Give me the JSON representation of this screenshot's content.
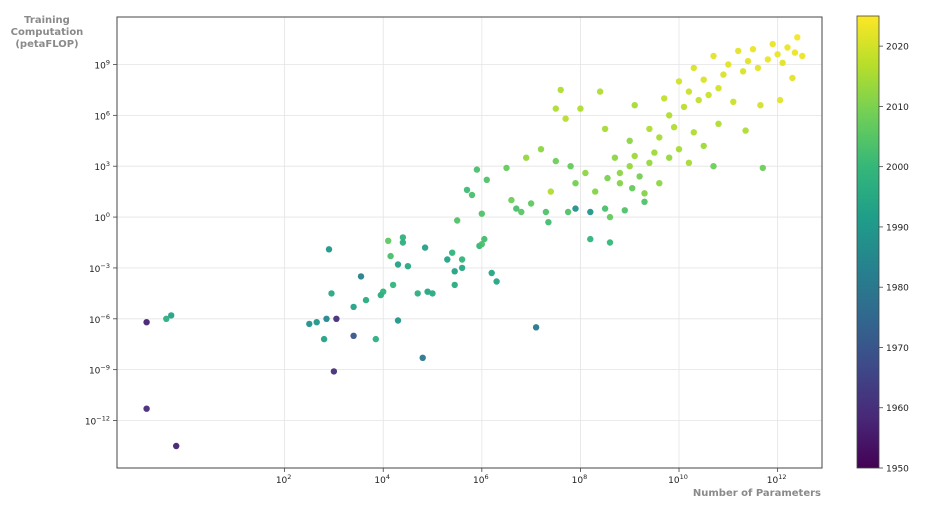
{
  "chart_data": {
    "type": "scatter",
    "title": "",
    "xlabel": "Number of Parameters",
    "ylabel_lines": [
      "Training",
      "Computation",
      "(petaFLOP)"
    ],
    "x_scale": "log",
    "y_scale": "log",
    "xlim_exp": [
      -1.4,
      12.9
    ],
    "ylim_exp": [
      -14.8,
      11.8
    ],
    "x_ticks": [
      {
        "base": "10",
        "exp": "2",
        "value_exp": 2
      },
      {
        "base": "10",
        "exp": "4",
        "value_exp": 4
      },
      {
        "base": "10",
        "exp": "6",
        "value_exp": 6
      },
      {
        "base": "10",
        "exp": "8",
        "value_exp": 8
      },
      {
        "base": "10",
        "exp": "10",
        "value_exp": 10
      },
      {
        "base": "10",
        "exp": "12",
        "value_exp": 12
      }
    ],
    "y_ticks": [
      {
        "base": "10",
        "exp": "−12",
        "value_exp": -12
      },
      {
        "base": "10",
        "exp": "−9",
        "value_exp": -9
      },
      {
        "base": "10",
        "exp": "−6",
        "value_exp": -6
      },
      {
        "base": "10",
        "exp": "−3",
        "value_exp": -3
      },
      {
        "base": "10",
        "exp": "0",
        "value_exp": 0
      },
      {
        "base": "10",
        "exp": "3",
        "value_exp": 3
      },
      {
        "base": "10",
        "exp": "6",
        "value_exp": 6
      },
      {
        "base": "10",
        "exp": "9",
        "value_exp": 9
      }
    ],
    "grid": true,
    "colorbar": {
      "label": "",
      "min": 1950,
      "max": 2025,
      "ticks": [
        "1950",
        "1960",
        "1970",
        "1980",
        "1990",
        "2000",
        "2010",
        "2020"
      ],
      "tick_values": [
        1950,
        1960,
        1970,
        1980,
        1990,
        2000,
        2010,
        2020
      ],
      "colormap": [
        "#440154",
        "#482878",
        "#3e4989",
        "#31688e",
        "#26828e",
        "#1f9e89",
        "#35b779",
        "#6ece58",
        "#b5de2b",
        "#fde725"
      ]
    },
    "points_note": "Each point: [log10 parameters, log10 training compute (petaFLOP), year]",
    "points": [
      [
        -0.8,
        -6.2,
        1957
      ],
      [
        -0.8,
        -11.3,
        1959
      ],
      [
        -0.2,
        -13.5,
        1957
      ],
      [
        -0.3,
        -5.8,
        1993
      ],
      [
        -0.4,
        -6.0,
        1997
      ],
      [
        2.5,
        -6.3,
        1988
      ],
      [
        2.65,
        -6.2,
        1990
      ],
      [
        2.8,
        -7.2,
        1993
      ],
      [
        2.85,
        -6.0,
        1985
      ],
      [
        2.9,
        -1.9,
        1990
      ],
      [
        2.95,
        -4.5,
        1995
      ],
      [
        3.05,
        -6.0,
        1960
      ],
      [
        3.0,
        -9.1,
        1960
      ],
      [
        3.4,
        -5.3,
        1993
      ],
      [
        3.4,
        -7.0,
        1970
      ],
      [
        3.55,
        -3.5,
        1983
      ],
      [
        3.65,
        -4.9,
        1996
      ],
      [
        3.85,
        -7.2,
        1997
      ],
      [
        3.95,
        -4.6,
        1996
      ],
      [
        4.0,
        -4.4,
        1998
      ],
      [
        4.1,
        -1.4,
        2006
      ],
      [
        4.15,
        -2.3,
        2003
      ],
      [
        4.2,
        -4.0,
        1999
      ],
      [
        4.3,
        -2.8,
        1993
      ],
      [
        4.3,
        -6.1,
        1990
      ],
      [
        4.4,
        -1.5,
        1997
      ],
      [
        4.4,
        -1.2,
        1998
      ],
      [
        4.5,
        -2.9,
        1995
      ],
      [
        4.7,
        -4.5,
        1997
      ],
      [
        4.8,
        -8.3,
        1980
      ],
      [
        4.85,
        -1.8,
        1993
      ],
      [
        4.9,
        -4.4,
        1994
      ],
      [
        5.0,
        -4.5,
        1996
      ],
      [
        5.3,
        -2.5,
        1993
      ],
      [
        5.4,
        -2.1,
        1999
      ],
      [
        5.45,
        -3.2,
        1993
      ],
      [
        5.45,
        -4.0,
        1996
      ],
      [
        5.5,
        -0.2,
        2004
      ],
      [
        5.6,
        -2.5,
        1999
      ],
      [
        5.6,
        -3.0,
        1995
      ],
      [
        5.7,
        1.6,
        2001
      ],
      [
        5.8,
        1.3,
        2003
      ],
      [
        5.9,
        2.8,
        2003
      ],
      [
        5.95,
        -1.7,
        1999
      ],
      [
        6.0,
        0.2,
        2004
      ],
      [
        6.0,
        -1.6,
        2003
      ],
      [
        6.05,
        -1.3,
        2002
      ],
      [
        6.1,
        2.2,
        2004
      ],
      [
        6.2,
        -3.3,
        1994
      ],
      [
        6.3,
        -3.8,
        1994
      ],
      [
        6.5,
        2.9,
        2007
      ],
      [
        6.6,
        1.0,
        2008
      ],
      [
        6.7,
        0.5,
        2003
      ],
      [
        6.8,
        0.3,
        2005
      ],
      [
        7.1,
        -6.5,
        1980
      ],
      [
        6.9,
        3.5,
        2013
      ],
      [
        7.0,
        0.8,
        2006
      ],
      [
        7.2,
        4.0,
        2012
      ],
      [
        7.3,
        0.3,
        2004
      ],
      [
        7.35,
        -0.3,
        2002
      ],
      [
        7.4,
        1.5,
        2016
      ],
      [
        7.5,
        3.3,
        2008
      ],
      [
        7.5,
        6.4,
        2016
      ],
      [
        7.6,
        7.5,
        2016
      ],
      [
        7.7,
        5.8,
        2017
      ],
      [
        7.75,
        0.3,
        2004
      ],
      [
        7.8,
        3.0,
        2007
      ],
      [
        7.9,
        0.5,
        1988
      ],
      [
        7.9,
        2.0,
        2009
      ],
      [
        8.0,
        6.4,
        2016
      ],
      [
        8.1,
        2.6,
        2012
      ],
      [
        8.2,
        0.3,
        1990
      ],
      [
        8.2,
        -1.3,
        1999
      ],
      [
        8.3,
        1.5,
        2011
      ],
      [
        8.4,
        7.4,
        2016
      ],
      [
        8.5,
        0.5,
        2003
      ],
      [
        8.5,
        5.2,
        2015
      ],
      [
        8.55,
        2.3,
        2010
      ],
      [
        8.6,
        0.0,
        2007
      ],
      [
        8.6,
        -1.5,
        2000
      ],
      [
        8.7,
        3.5,
        2012
      ],
      [
        8.8,
        2.0,
        2011
      ],
      [
        8.8,
        2.6,
        2012
      ],
      [
        8.9,
        0.4,
        2004
      ],
      [
        9.0,
        3.0,
        2013
      ],
      [
        9.0,
        4.5,
        2012
      ],
      [
        9.05,
        1.7,
        2007
      ],
      [
        9.1,
        6.6,
        2015
      ],
      [
        9.1,
        3.6,
        2014
      ],
      [
        9.2,
        2.4,
        2009
      ],
      [
        9.3,
        1.4,
        2011
      ],
      [
        9.3,
        0.9,
        2004
      ],
      [
        9.4,
        5.2,
        2016
      ],
      [
        9.4,
        3.2,
        2013
      ],
      [
        9.5,
        3.8,
        2014
      ],
      [
        9.6,
        4.7,
        2015
      ],
      [
        9.6,
        2.0,
        2012
      ],
      [
        9.7,
        7.0,
        2018
      ],
      [
        9.8,
        6.0,
        2016
      ],
      [
        9.8,
        3.5,
        2013
      ],
      [
        9.9,
        5.3,
        2016
      ],
      [
        10.0,
        4.0,
        2015
      ],
      [
        10.0,
        8.0,
        2020
      ],
      [
        10.1,
        6.5,
        2017
      ],
      [
        10.2,
        3.2,
        2015
      ],
      [
        10.2,
        7.4,
        2019
      ],
      [
        10.3,
        5.0,
        2016
      ],
      [
        10.3,
        8.8,
        2021
      ],
      [
        10.4,
        6.9,
        2018
      ],
      [
        10.5,
        4.2,
        2014
      ],
      [
        10.5,
        8.1,
        2021
      ],
      [
        10.6,
        7.2,
        2019
      ],
      [
        10.7,
        3.0,
        2008
      ],
      [
        10.7,
        9.5,
        2022
      ],
      [
        10.8,
        7.6,
        2020
      ],
      [
        10.8,
        5.5,
        2016
      ],
      [
        10.9,
        8.4,
        2021
      ],
      [
        11.0,
        9.0,
        2022
      ],
      [
        11.1,
        6.8,
        2019
      ],
      [
        11.2,
        9.8,
        2022
      ],
      [
        11.3,
        8.6,
        2021
      ],
      [
        11.35,
        5.1,
        2016
      ],
      [
        11.4,
        9.2,
        2022
      ],
      [
        11.5,
        9.9,
        2023
      ],
      [
        11.6,
        8.8,
        2022
      ],
      [
        11.65,
        6.6,
        2020
      ],
      [
        11.7,
        2.9,
        2008
      ],
      [
        11.8,
        9.3,
        2023
      ],
      [
        11.9,
        10.2,
        2023
      ],
      [
        12.0,
        9.6,
        2023
      ],
      [
        12.1,
        9.1,
        2022
      ],
      [
        12.05,
        6.9,
        2022
      ],
      [
        12.2,
        10.0,
        2023
      ],
      [
        12.3,
        8.2,
        2022
      ],
      [
        12.35,
        9.7,
        2023
      ],
      [
        12.4,
        10.6,
        2024
      ],
      [
        12.5,
        9.5,
        2023
      ]
    ]
  }
}
